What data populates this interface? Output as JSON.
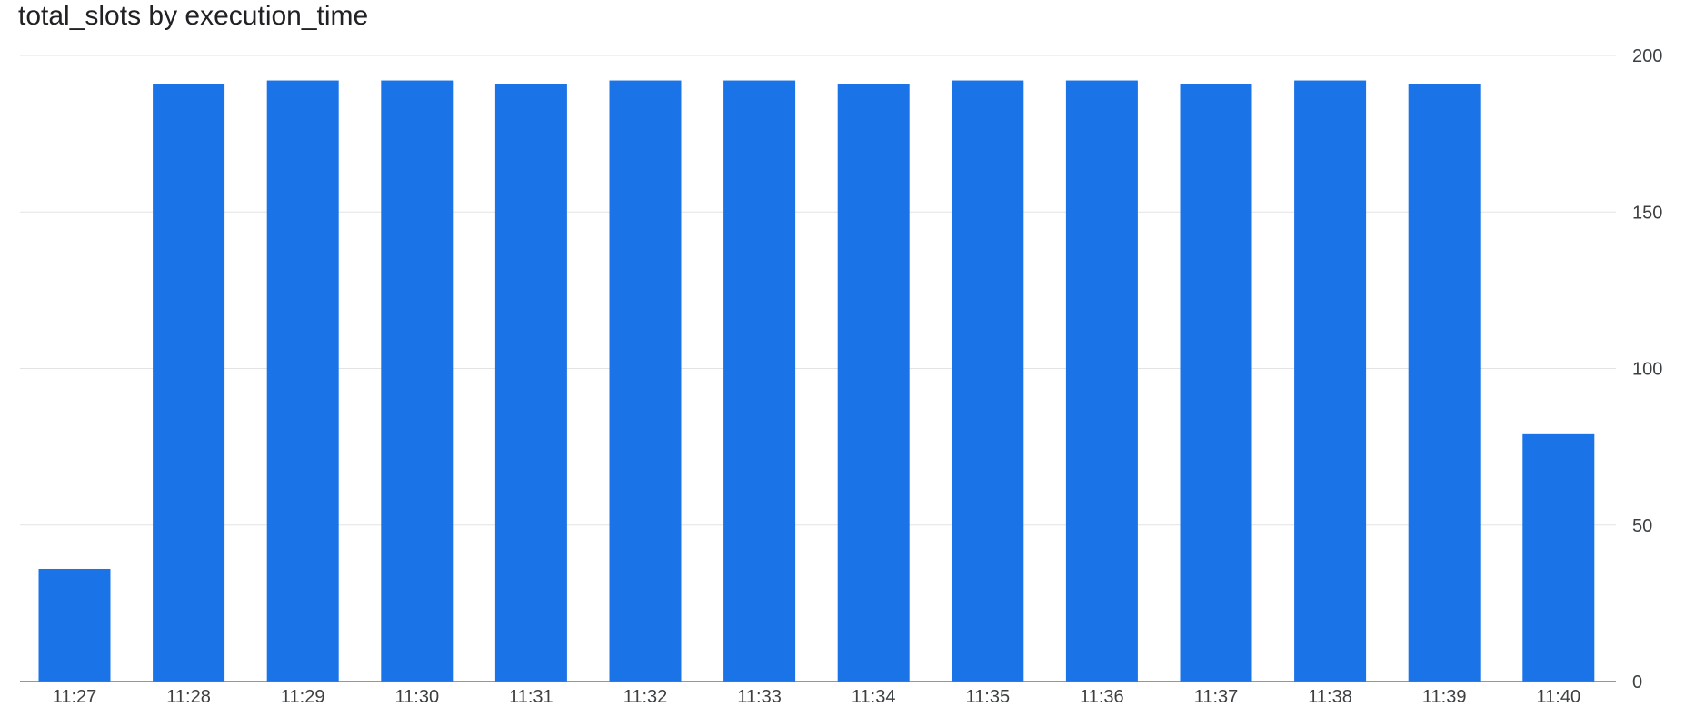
{
  "chart_data": {
    "type": "bar",
    "title": "total_slots by execution_time",
    "xlabel": "",
    "ylabel": "",
    "categories": [
      "11:27",
      "11:28",
      "11:29",
      "11:30",
      "11:31",
      "11:32",
      "11:33",
      "11:34",
      "11:35",
      "11:36",
      "11:37",
      "11:38",
      "11:39",
      "11:40"
    ],
    "values": [
      36,
      191,
      192,
      192,
      191,
      192,
      192,
      191,
      192,
      192,
      191,
      192,
      191,
      79
    ],
    "ylim": [
      0,
      200
    ],
    "yticks": [
      0,
      50,
      100,
      150,
      200
    ],
    "grid": true,
    "y_axis_side": "right",
    "bar_color": "#1b73e8"
  }
}
